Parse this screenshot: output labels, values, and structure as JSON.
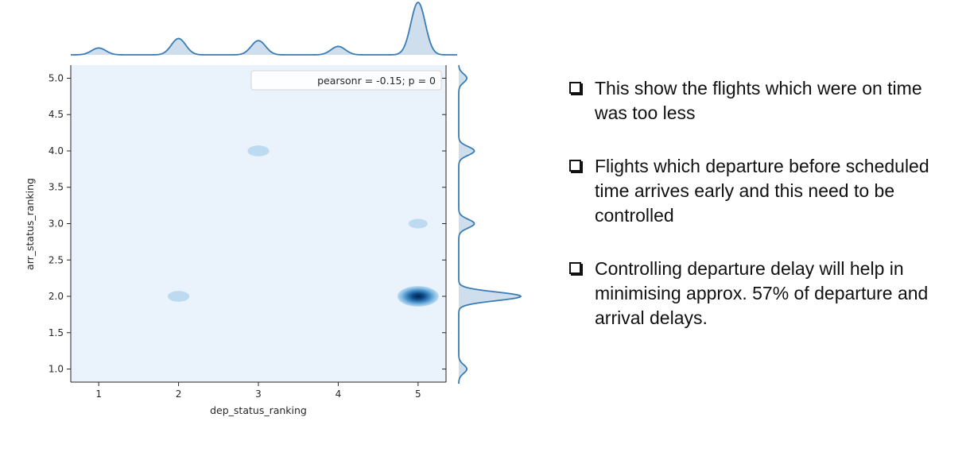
{
  "chart_data": {
    "type": "kde-jointplot",
    "xlabel": "dep_status_ranking",
    "ylabel": "arr_status_ranking",
    "xlim": [
      0.65,
      5.35
    ],
    "ylim": [
      0.82,
      5.18
    ],
    "xticks": [
      "1",
      "2",
      "3",
      "4",
      "5"
    ],
    "yticks": [
      "1.0",
      "1.5",
      "2.0",
      "2.5",
      "3.0",
      "3.5",
      "4.0",
      "4.5",
      "5.0"
    ],
    "annotation": "pearsonr = -0.15; p = 0",
    "legend_position": "top-right",
    "color": "#3a7cb5",
    "background_color": "#eaf3fb",
    "clusters": [
      {
        "x": 5,
        "y": 2,
        "density": 1.0
      },
      {
        "x": 2,
        "y": 2,
        "density": 0.14
      },
      {
        "x": 3,
        "y": 4,
        "density": 0.14
      },
      {
        "x": 5,
        "y": 3,
        "density": 0.1
      }
    ],
    "marginal_x": [
      {
        "x": 1,
        "density": 0.13
      },
      {
        "x": 2,
        "density": 0.31
      },
      {
        "x": 3,
        "density": 0.27
      },
      {
        "x": 4,
        "density": 0.16
      },
      {
        "x": 5,
        "density": 1.0
      }
    ],
    "marginal_y": [
      {
        "y": 1,
        "density": 0.13
      },
      {
        "y": 2,
        "density": 1.0
      },
      {
        "y": 3,
        "density": 0.25
      },
      {
        "y": 4,
        "density": 0.25
      },
      {
        "y": 5,
        "density": 0.13
      }
    ]
  },
  "notes": [
    {
      "text": "This show the flights which were on time was too less"
    },
    {
      "text": "Flights which departure before scheduled time arrives early and this need to be controlled"
    },
    {
      "text": "Controlling departure delay will help in minimising approx. 57% of departure and arrival delays."
    }
  ]
}
